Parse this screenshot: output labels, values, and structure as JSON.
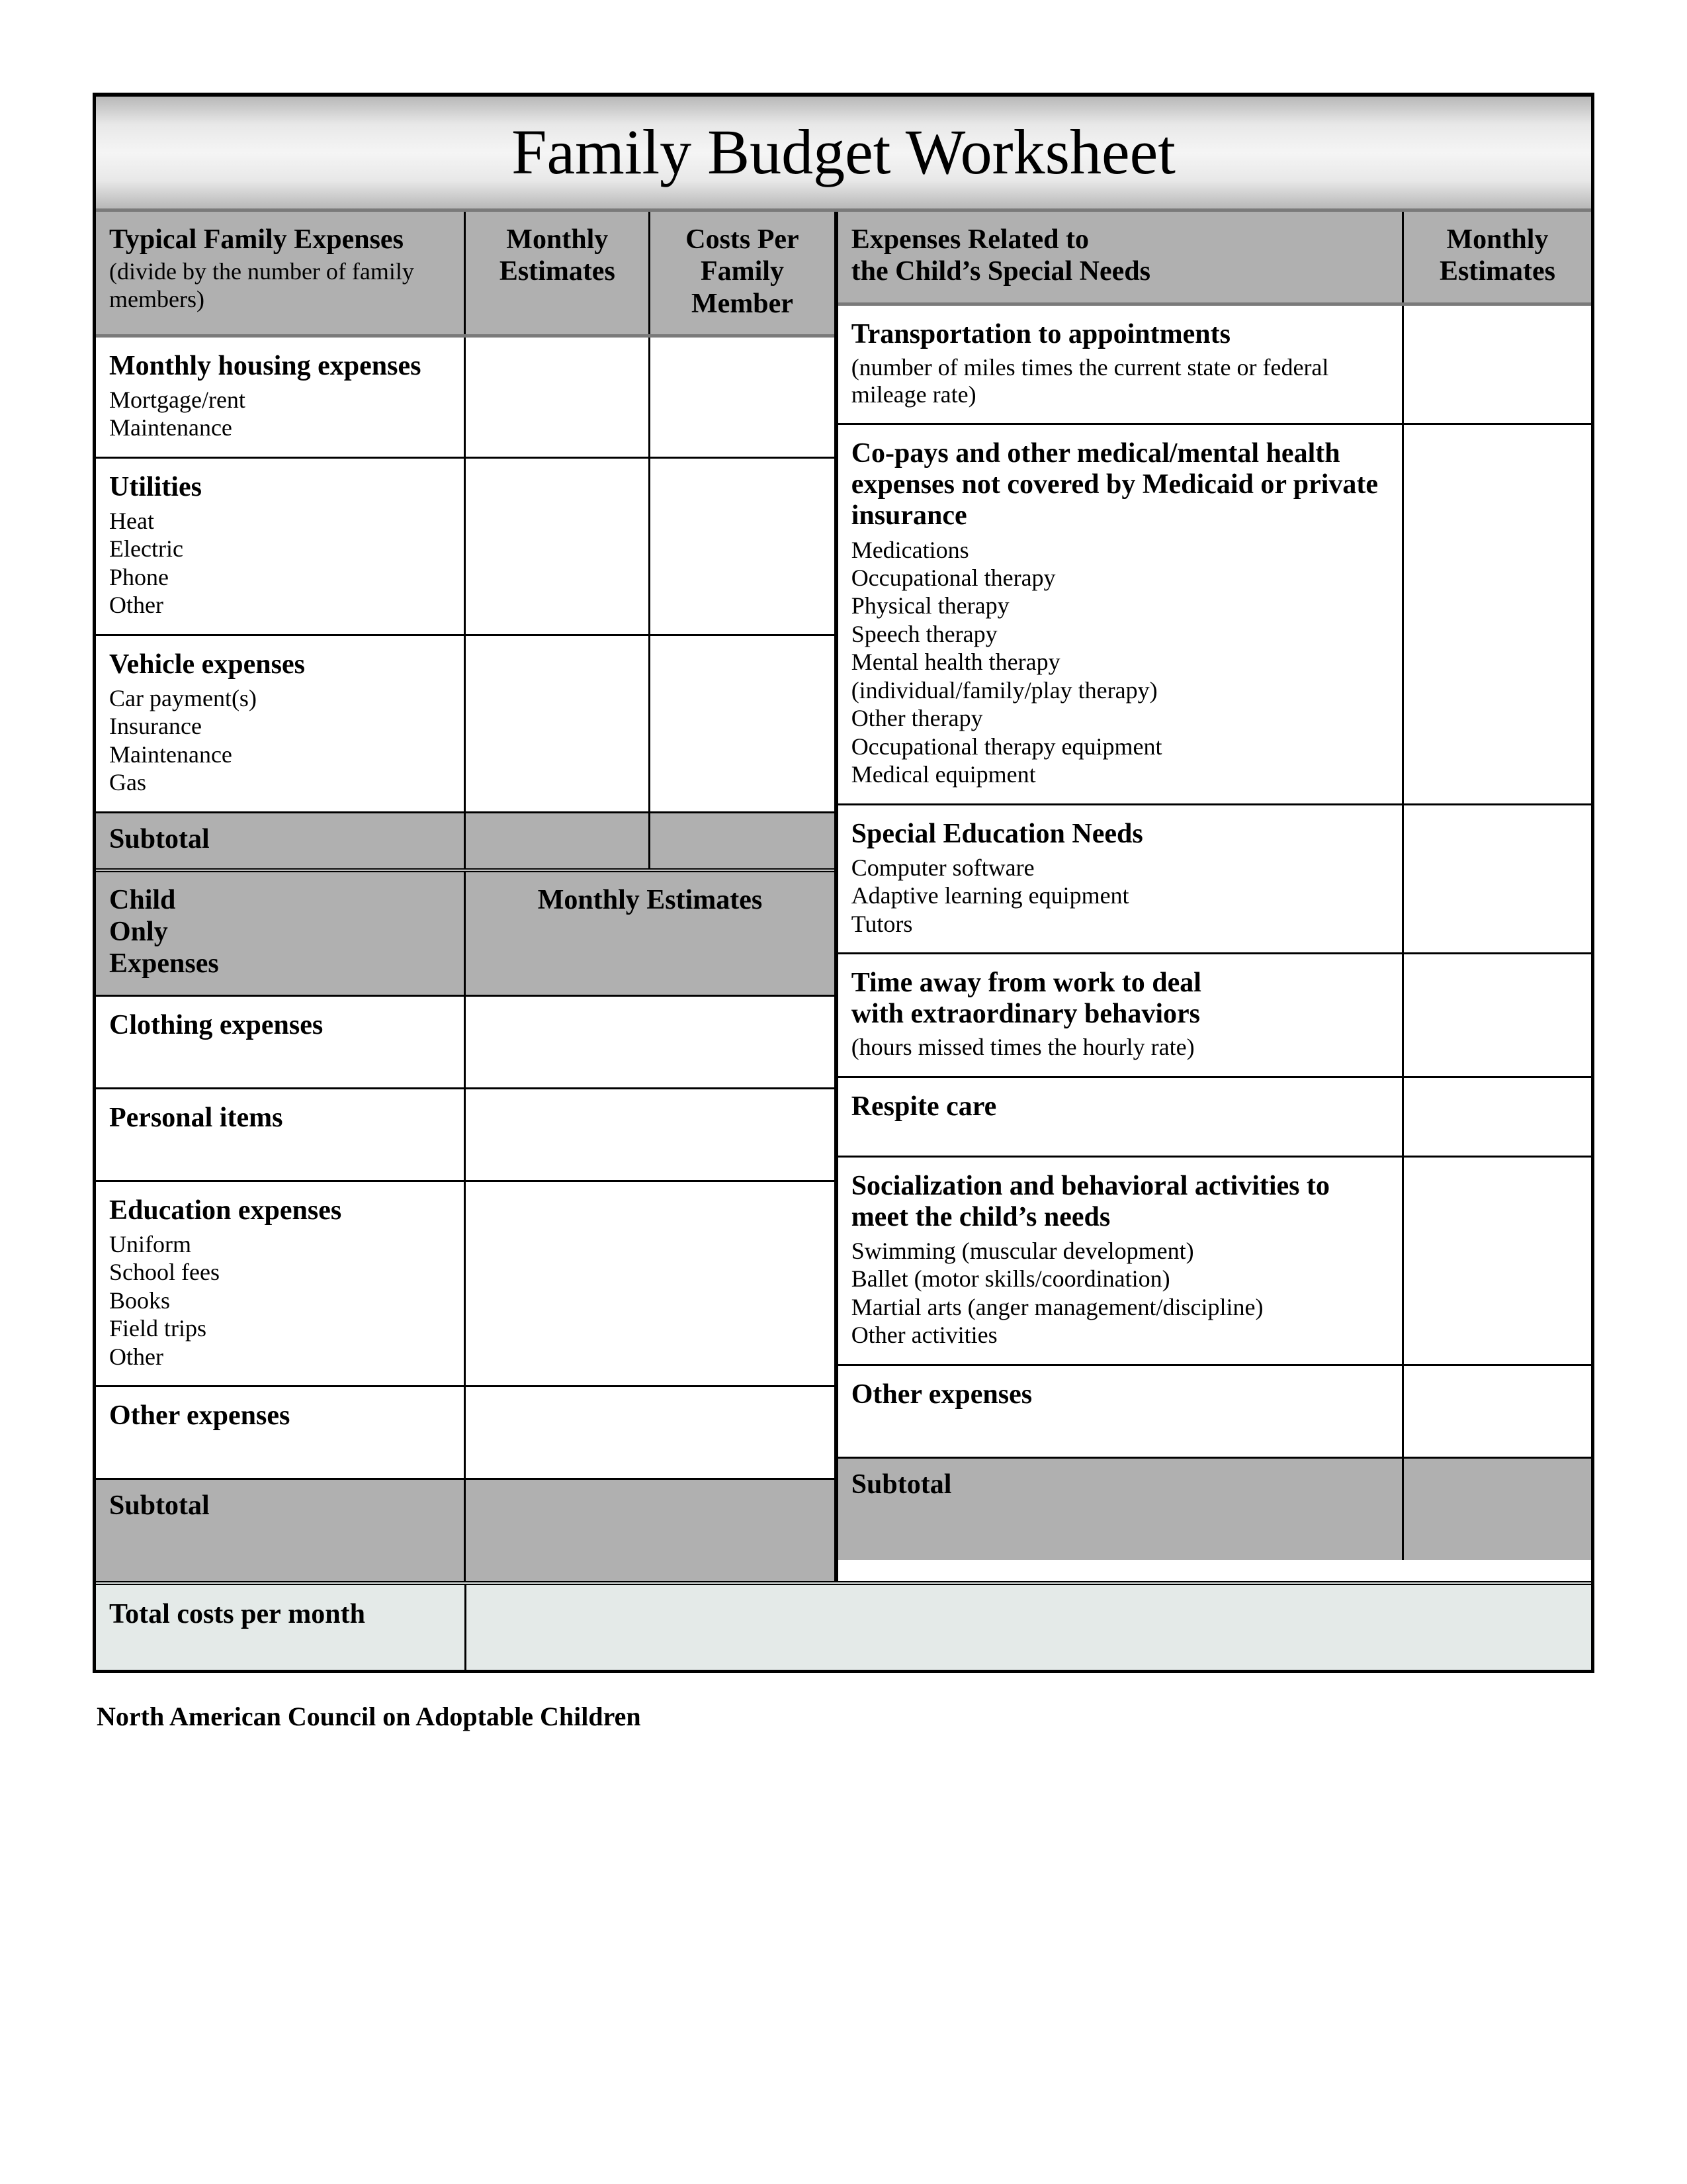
{
  "title": "Family Budget Worksheet",
  "footer": "North American Council on Adoptable Children",
  "colors": {
    "header_fill": "#b0b0b0",
    "title_gradient_mid": "#f5f5f5",
    "title_gradient_edge": "#b8b8b8",
    "border": "#000000",
    "header_border": "#7a7a7a",
    "total_fill": "#e4eae8",
    "page_bg": "#ffffff"
  },
  "left": {
    "header": {
      "c1_title": "Typical Family Expenses",
      "c1_sub": "(divide by the number of family members)",
      "c2": "Monthly Estimates",
      "c3": "Costs Per Family Member"
    },
    "sections": [
      {
        "title": "Monthly housing expenses",
        "items": [
          "Mortgage/rent",
          "Maintenance"
        ]
      },
      {
        "title": "Utilities",
        "items": [
          "Heat",
          "Electric",
          "Phone",
          "Other"
        ]
      },
      {
        "title": "Vehicle expenses",
        "items": [
          "Car payment(s)",
          "Insurance",
          "Maintenance",
          "Gas"
        ]
      }
    ],
    "subtotal1": "Subtotal",
    "mid_header": {
      "c1": "Child\nOnly\nExpenses",
      "c2": "Monthly Estimates"
    },
    "sections2": [
      {
        "title": "Clothing expenses",
        "items": []
      },
      {
        "title": "Personal items",
        "items": []
      },
      {
        "title": "Education expenses",
        "items": [
          "Uniform",
          "School fees",
          "Books",
          "Field trips",
          "Other"
        ]
      },
      {
        "title": "Other expenses",
        "items": []
      }
    ],
    "subtotal2": "Subtotal"
  },
  "right": {
    "header": {
      "c1_line1": "Expenses Related to",
      "c1_line2": "the Child’s Special Needs",
      "c2": "Monthly Estimates"
    },
    "sections": [
      {
        "title": "Transportation to appointments",
        "sub": "(number of miles times the current state or federal mileage rate)",
        "items": []
      },
      {
        "title": "Co-pays and other medical/mental health expenses not covered by Medicaid or private insurance",
        "items": [
          "Medications",
          "Occupational therapy",
          "Physical therapy",
          "Speech therapy",
          "Mental health therapy",
          "(individual/family/play therapy)",
          "Other therapy",
          "Occupational therapy equipment",
          "Medical equipment"
        ]
      },
      {
        "title": "Special Education Needs",
        "items": [
          "Computer software",
          "Adaptive learning equipment",
          "Tutors"
        ]
      },
      {
        "title": "Time away from work to deal with extraordinary behaviors",
        "sub": "(hours missed times the hourly rate)",
        "items": []
      },
      {
        "title": "Respite care",
        "items": []
      },
      {
        "title": "Socialization and behavioral activities to meet the child’s needs",
        "items": [
          "Swimming (muscular development)",
          "Ballet (motor skills/coordination)",
          "Martial arts (anger management/discipline)",
          "Other activities"
        ]
      },
      {
        "title": "Other expenses",
        "items": []
      }
    ],
    "subtotal": "Subtotal"
  },
  "total": {
    "label": "Total costs per month"
  }
}
